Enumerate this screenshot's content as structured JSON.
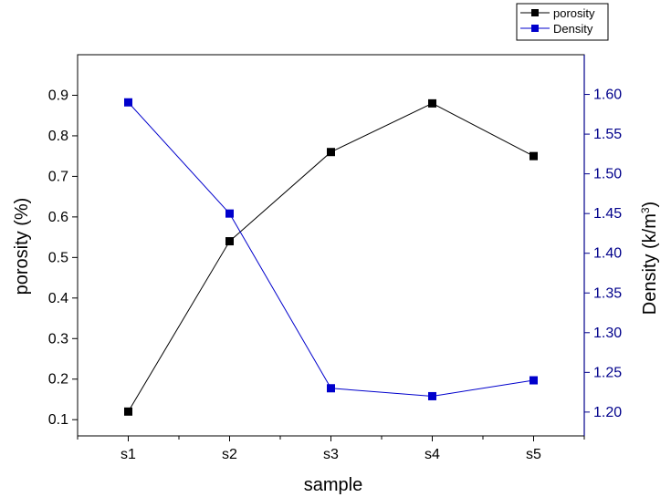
{
  "chart_data": {
    "type": "line",
    "categories": [
      "s1",
      "s2",
      "s3",
      "s4",
      "s5"
    ],
    "xlabel": "sample",
    "series": [
      {
        "name": "porosity",
        "axis": "left",
        "color": "#000000",
        "values": [
          0.12,
          0.54,
          0.76,
          0.88,
          0.75
        ]
      },
      {
        "name": "Density",
        "axis": "right",
        "color": "#0000cc",
        "values": [
          1.59,
          1.45,
          1.23,
          1.22,
          1.24
        ]
      }
    ],
    "left_axis": {
      "label": "porosity (%)",
      "ylim": [
        0.06,
        1.0
      ],
      "ticks": [
        "0.1",
        "0.2",
        "0.3",
        "0.4",
        "0.5",
        "0.6",
        "0.7",
        "0.8",
        "0.9"
      ],
      "color": "#000000"
    },
    "right_axis": {
      "label_main": "Density (k/m",
      "label_sup": "3",
      "label_close": ")",
      "ylim": [
        1.17,
        1.65
      ],
      "ticks": [
        "1.20",
        "1.25",
        "1.30",
        "1.35",
        "1.40",
        "1.45",
        "1.50",
        "1.55",
        "1.60"
      ],
      "color": "#00008b"
    },
    "legend": {
      "position": "top-right",
      "entries": [
        "porosity",
        "Density"
      ]
    },
    "grid": false
  }
}
